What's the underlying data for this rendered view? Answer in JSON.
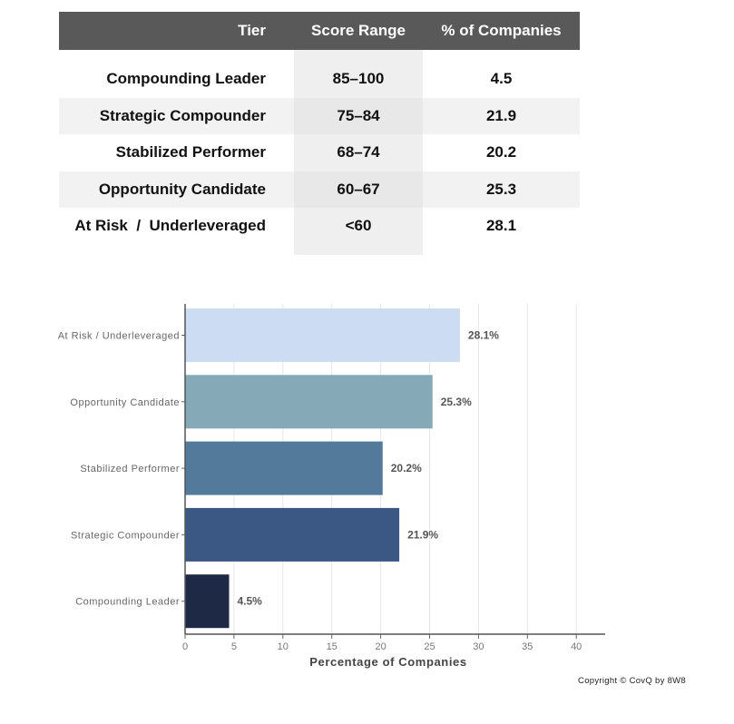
{
  "table": {
    "headers": [
      "Tier",
      "Score Range",
      "% of Companies"
    ],
    "rows": [
      {
        "tier": "Compounding Leader",
        "range": "85–100",
        "pct": "4.5"
      },
      {
        "tier": "Strategic Compounder",
        "range": "75–84",
        "pct": "21.9"
      },
      {
        "tier": "Stabilized Performer",
        "range": "68–74",
        "pct": "20.2"
      },
      {
        "tier": "Opportunity Candidate",
        "range": "60–67",
        "pct": "25.3"
      },
      {
        "tier": "At Risk  /  Underleveraged",
        "range": "<60",
        "pct": "28.1"
      }
    ]
  },
  "chart_data": {
    "type": "bar",
    "orientation": "horizontal",
    "categories": [
      "At Risk / Underleveraged",
      "Opportunity Candidate",
      "Stabilized Performer",
      "Strategic Compounder",
      "Compounding Leader"
    ],
    "values": [
      28.1,
      25.3,
      20.2,
      21.9,
      4.5
    ],
    "data_labels": [
      "28.1%",
      "25.3%",
      "20.2%",
      "21.9%",
      "4.5%"
    ],
    "colors": [
      "#ccdcf3",
      "#86a9b7",
      "#537a9b",
      "#3b5885",
      "#1e2a45"
    ],
    "xlabel": "Percentage of Companies",
    "ylabel": "",
    "title": "",
    "xlim": [
      0,
      42
    ],
    "xticks": [
      0,
      5,
      10,
      15,
      20,
      25,
      30,
      35,
      40
    ],
    "grid": "x"
  },
  "footer": {
    "copyright": "Copyright © CovQ by 8W8"
  }
}
